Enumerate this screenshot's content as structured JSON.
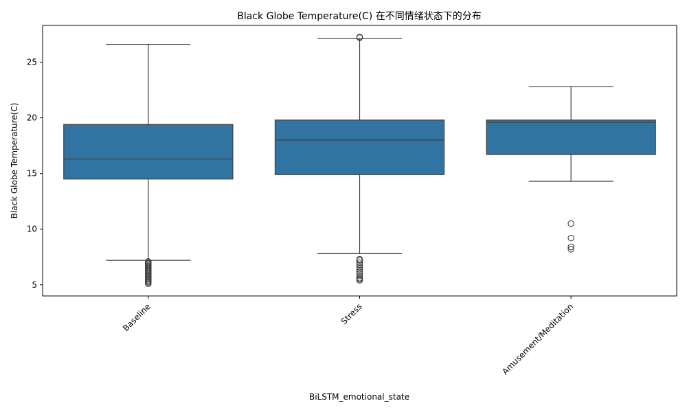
{
  "chart_data": {
    "type": "box",
    "title": "Black Globe Temperature(C) 在不同情绪状态下的分布",
    "xlabel": "BiLSTM_emotional_state",
    "ylabel": "Black Globe Temperature(C)",
    "ylim": [
      4.0,
      28.3
    ],
    "yticks": [
      5,
      10,
      15,
      20,
      25
    ],
    "grid": false,
    "color": "#3274a1",
    "categories": [
      "Baseline",
      "Stress",
      "Amusement/Meditation"
    ],
    "boxes": [
      {
        "name": "Baseline",
        "whisker_low": 7.2,
        "q1": 14.5,
        "median": 16.3,
        "q3": 19.4,
        "whisker_high": 26.6,
        "outliers": [
          7.1,
          7.0,
          6.9,
          6.8,
          6.7,
          6.6,
          6.5,
          6.4,
          6.3,
          6.2,
          6.1,
          6.0,
          5.9,
          5.8,
          5.7,
          5.6,
          5.5,
          5.4,
          5.3,
          5.2,
          5.1
        ]
      },
      {
        "name": "Stress",
        "whisker_low": 7.8,
        "q1": 14.9,
        "median": 18.0,
        "q3": 19.8,
        "whisker_high": 27.1,
        "outliers": [
          27.2,
          27.25,
          7.3,
          7.2,
          7.0,
          6.8,
          6.6,
          6.4,
          6.2,
          6.0,
          5.8,
          5.6,
          5.5,
          5.4
        ]
      },
      {
        "name": "Amusement/Meditation",
        "whisker_low": 14.3,
        "q1": 16.7,
        "median": 19.6,
        "q3": 19.8,
        "whisker_high": 22.8,
        "outliers": [
          10.5,
          9.2,
          8.4,
          8.2
        ]
      }
    ]
  }
}
